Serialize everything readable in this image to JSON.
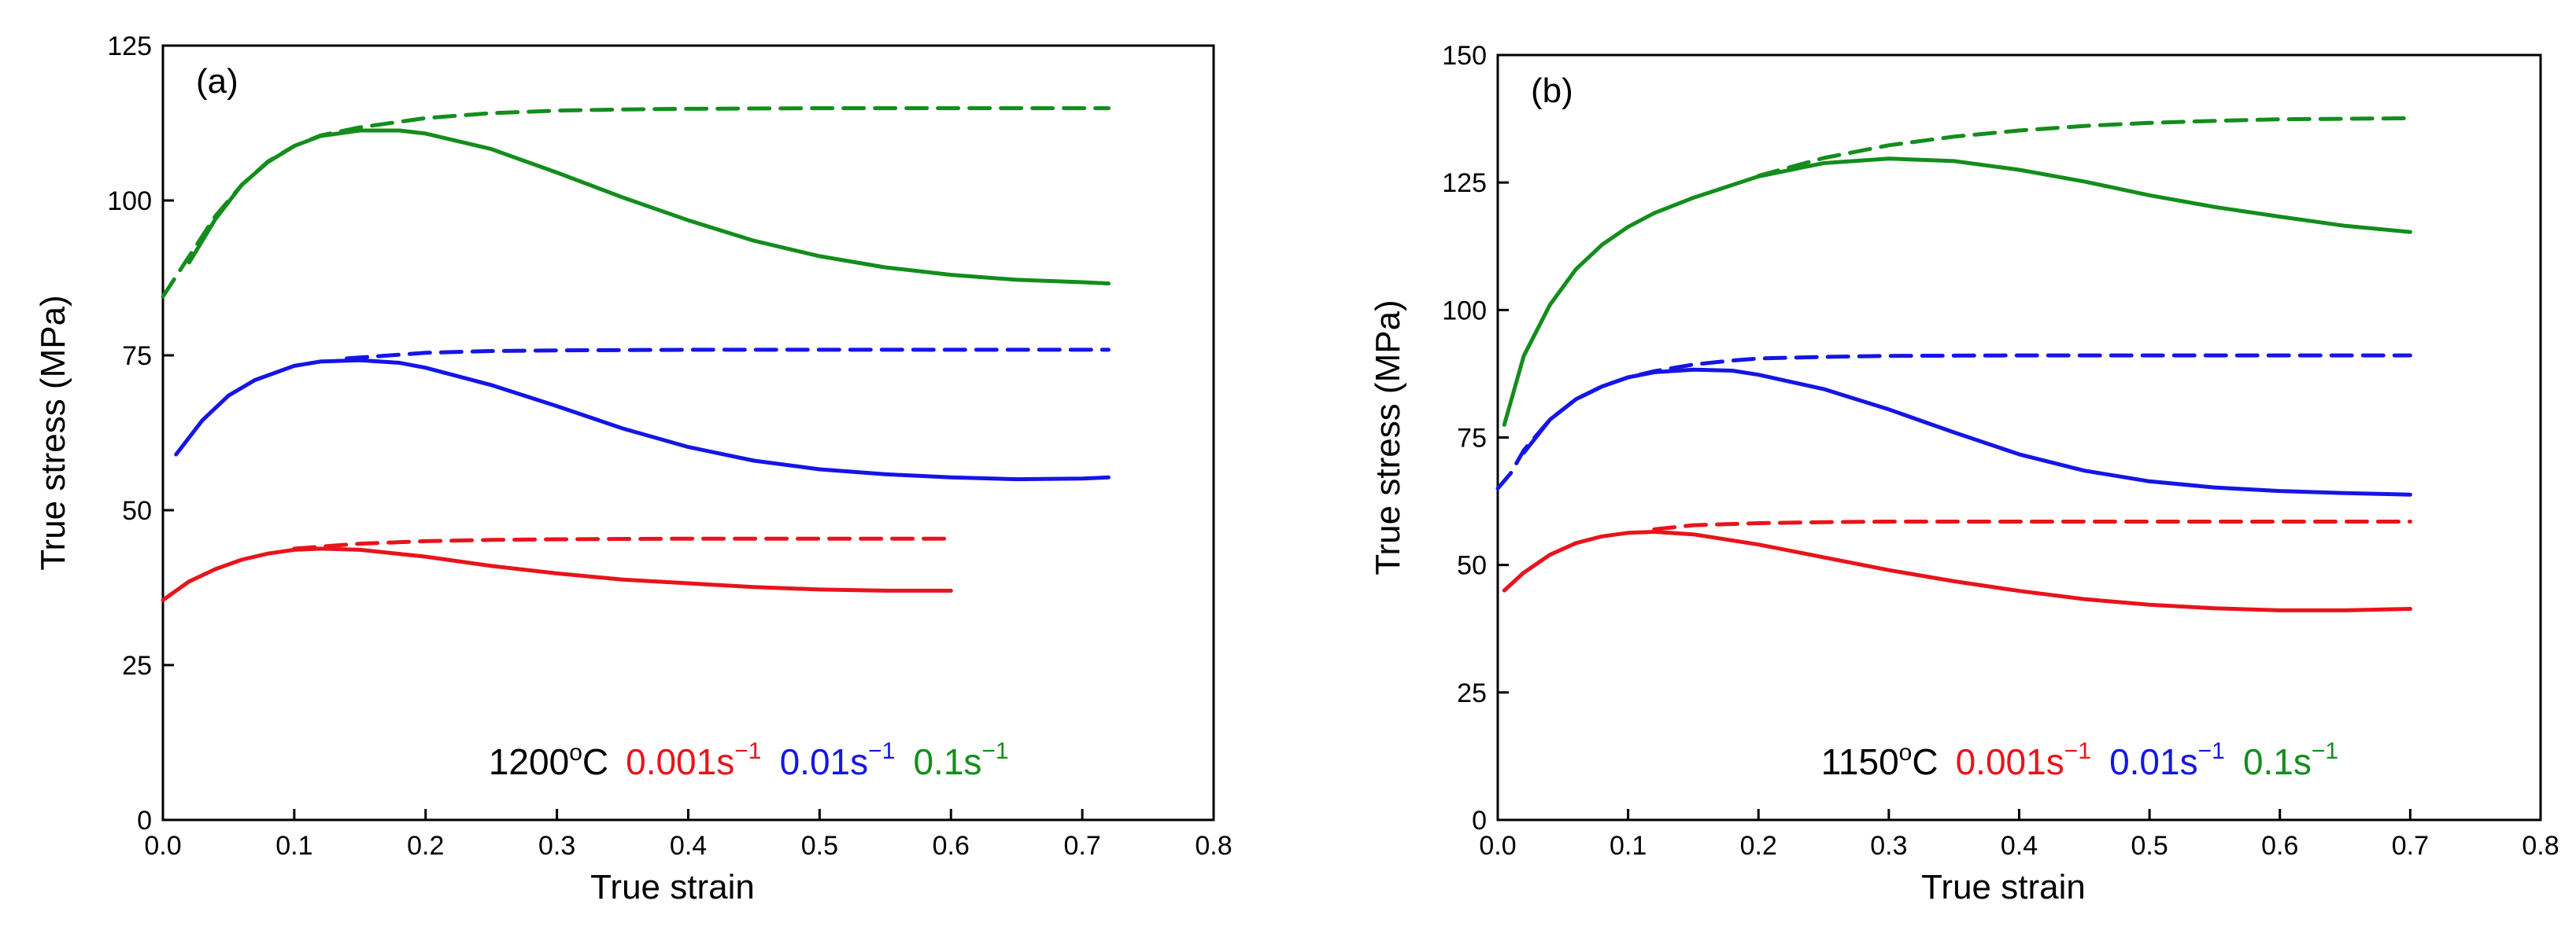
{
  "chart_data": [
    {
      "type": "line",
      "panel_label": "(a)",
      "xlabel": "True strain",
      "ylabel": "True stress (MPa)",
      "xlim": [
        0,
        0.8
      ],
      "ylim": [
        0,
        125
      ],
      "xticks": [
        "0.0",
        "0.1",
        "0.2",
        "0.3",
        "0.4",
        "0.5",
        "0.6",
        "0.7",
        "0.8"
      ],
      "yticks": [
        "0",
        "25",
        "50",
        "75",
        "100",
        "125"
      ],
      "legend": {
        "placement": "bottom-center",
        "temperature": "1200",
        "temperature_unit": "oC",
        "entries": [
          {
            "base": "0.001s",
            "sup": "−1",
            "color": "#e8141b"
          },
          {
            "base": "0.01s",
            "sup": "−1",
            "color": "#1515e6"
          },
          {
            "base": "0.1s",
            "sup": "−1",
            "color": "#138d1c"
          }
        ]
      },
      "series": [
        {
          "color": "#e8141b",
          "style": "solid",
          "x": [
            0.0,
            0.02,
            0.04,
            0.06,
            0.08,
            0.1,
            0.12,
            0.15,
            0.2,
            0.25,
            0.3,
            0.35,
            0.4,
            0.45,
            0.5,
            0.55,
            0.6
          ],
          "y": [
            35.5,
            38.5,
            40.5,
            42.0,
            43.0,
            43.6,
            43.8,
            43.6,
            42.5,
            41.0,
            39.8,
            38.8,
            38.2,
            37.6,
            37.2,
            37.0,
            37.0
          ]
        },
        {
          "color": "#e8141b",
          "style": "dashed",
          "x": [
            0.1,
            0.15,
            0.2,
            0.25,
            0.3,
            0.4,
            0.5,
            0.6
          ],
          "y": [
            43.8,
            44.6,
            45.0,
            45.2,
            45.3,
            45.4,
            45.4,
            45.4
          ]
        },
        {
          "color": "#1515e6",
          "style": "solid",
          "x": [
            0.01,
            0.03,
            0.05,
            0.07,
            0.1,
            0.12,
            0.15,
            0.18,
            0.2,
            0.25,
            0.3,
            0.35,
            0.4,
            0.45,
            0.5,
            0.55,
            0.6,
            0.65,
            0.7,
            0.72
          ],
          "y": [
            59.0,
            64.5,
            68.5,
            71.0,
            73.3,
            74.0,
            74.2,
            73.8,
            73.0,
            70.2,
            66.8,
            63.2,
            60.2,
            58.0,
            56.6,
            55.8,
            55.3,
            55.0,
            55.1,
            55.3
          ]
        },
        {
          "color": "#1515e6",
          "style": "dashed",
          "x": [
            0.14,
            0.2,
            0.25,
            0.3,
            0.4,
            0.5,
            0.6,
            0.7,
            0.72
          ],
          "y": [
            74.5,
            75.4,
            75.7,
            75.8,
            75.9,
            75.9,
            75.9,
            75.9,
            75.9
          ]
        },
        {
          "color": "#138d1c",
          "style": "solid",
          "x": [
            0.02,
            0.04,
            0.06,
            0.08,
            0.1,
            0.12,
            0.15,
            0.18,
            0.2,
            0.25,
            0.3,
            0.35,
            0.4,
            0.45,
            0.5,
            0.55,
            0.6,
            0.65,
            0.7,
            0.72
          ],
          "y": [
            90.0,
            97.0,
            102.5,
            106.2,
            108.8,
            110.4,
            111.3,
            111.3,
            110.8,
            108.3,
            104.5,
            100.5,
            96.8,
            93.5,
            91.0,
            89.2,
            88.0,
            87.2,
            86.8,
            86.6
          ]
        },
        {
          "color": "#138d1c",
          "style": "dashed",
          "x": [
            0.0,
            0.02,
            0.04,
            0.06,
            0.08,
            0.1,
            0.12,
            0.15,
            0.2,
            0.25,
            0.3,
            0.35,
            0.4,
            0.5,
            0.6,
            0.7,
            0.72
          ],
          "y": [
            84.5,
            91.0,
            97.5,
            102.5,
            106.3,
            108.8,
            110.5,
            111.8,
            113.3,
            114.1,
            114.5,
            114.7,
            114.8,
            114.9,
            114.9,
            114.9,
            114.9
          ]
        }
      ]
    },
    {
      "type": "line",
      "panel_label": "(b)",
      "xlabel": "True strain",
      "ylabel": "True stress (MPa)",
      "xlim": [
        0,
        0.8
      ],
      "ylim": [
        0,
        150
      ],
      "xticks": [
        "0.0",
        "0.1",
        "0.2",
        "0.3",
        "0.4",
        "0.5",
        "0.6",
        "0.7",
        "0.8"
      ],
      "yticks": [
        "0",
        "25",
        "50",
        "75",
        "100",
        "125",
        "150"
      ],
      "legend": {
        "placement": "bottom-center",
        "temperature": "1150",
        "temperature_unit": "oC",
        "entries": [
          {
            "base": "0.001s",
            "sup": "−1",
            "color": "#e8141b"
          },
          {
            "base": "0.01s",
            "sup": "−1",
            "color": "#1515e6"
          },
          {
            "base": "0.1s",
            "sup": "−1",
            "color": "#138d1c"
          }
        ]
      },
      "series": [
        {
          "color": "#e8141b",
          "style": "solid",
          "x": [
            0.005,
            0.02,
            0.04,
            0.06,
            0.08,
            0.1,
            0.12,
            0.15,
            0.2,
            0.25,
            0.3,
            0.35,
            0.4,
            0.45,
            0.5,
            0.55,
            0.6,
            0.65,
            0.7
          ],
          "y": [
            45.0,
            48.5,
            52.0,
            54.3,
            55.6,
            56.3,
            56.5,
            56.0,
            54.0,
            51.5,
            49.0,
            46.8,
            44.9,
            43.3,
            42.2,
            41.5,
            41.1,
            41.1,
            41.4
          ]
        },
        {
          "color": "#e8141b",
          "style": "dashed",
          "x": [
            0.12,
            0.15,
            0.2,
            0.25,
            0.3,
            0.4,
            0.5,
            0.6,
            0.7
          ],
          "y": [
            57.0,
            57.8,
            58.2,
            58.4,
            58.5,
            58.5,
            58.5,
            58.5,
            58.5
          ]
        },
        {
          "color": "#1515e6",
          "style": "solid",
          "x": [
            0.02,
            0.04,
            0.06,
            0.08,
            0.1,
            0.12,
            0.15,
            0.18,
            0.2,
            0.25,
            0.3,
            0.35,
            0.4,
            0.45,
            0.5,
            0.55,
            0.6,
            0.65,
            0.7
          ],
          "y": [
            72.0,
            78.5,
            82.5,
            85.0,
            86.8,
            87.8,
            88.3,
            88.1,
            87.3,
            84.5,
            80.5,
            76.0,
            71.7,
            68.5,
            66.4,
            65.2,
            64.5,
            64.1,
            63.8
          ]
        },
        {
          "color": "#1515e6",
          "style": "dashed",
          "x": [
            0.0,
            0.01,
            0.02,
            0.04,
            0.06,
            0.08,
            0.1,
            0.12,
            0.15,
            0.18,
            0.2,
            0.25,
            0.3,
            0.4,
            0.5,
            0.6,
            0.7
          ],
          "y": [
            65.0,
            68.0,
            72.5,
            78.5,
            82.5,
            85.0,
            86.8,
            88.0,
            89.3,
            90.1,
            90.5,
            90.8,
            91.0,
            91.1,
            91.1,
            91.1,
            91.1
          ]
        },
        {
          "color": "#138d1c",
          "style": "solid",
          "x": [
            0.005,
            0.02,
            0.04,
            0.06,
            0.08,
            0.1,
            0.12,
            0.15,
            0.2,
            0.25,
            0.3,
            0.35,
            0.4,
            0.45,
            0.5,
            0.55,
            0.6,
            0.65,
            0.7
          ],
          "y": [
            77.5,
            91.0,
            101.0,
            108.0,
            112.8,
            116.3,
            119.0,
            122.0,
            126.2,
            128.8,
            129.7,
            129.2,
            127.5,
            125.2,
            122.5,
            120.2,
            118.3,
            116.5,
            115.3
          ]
        },
        {
          "color": "#138d1c",
          "style": "dashed",
          "x": [
            0.2,
            0.25,
            0.3,
            0.35,
            0.4,
            0.45,
            0.5,
            0.55,
            0.6,
            0.65,
            0.7
          ],
          "y": [
            126.3,
            129.8,
            132.3,
            134.0,
            135.2,
            136.1,
            136.7,
            137.1,
            137.4,
            137.5,
            137.6
          ]
        }
      ]
    }
  ]
}
